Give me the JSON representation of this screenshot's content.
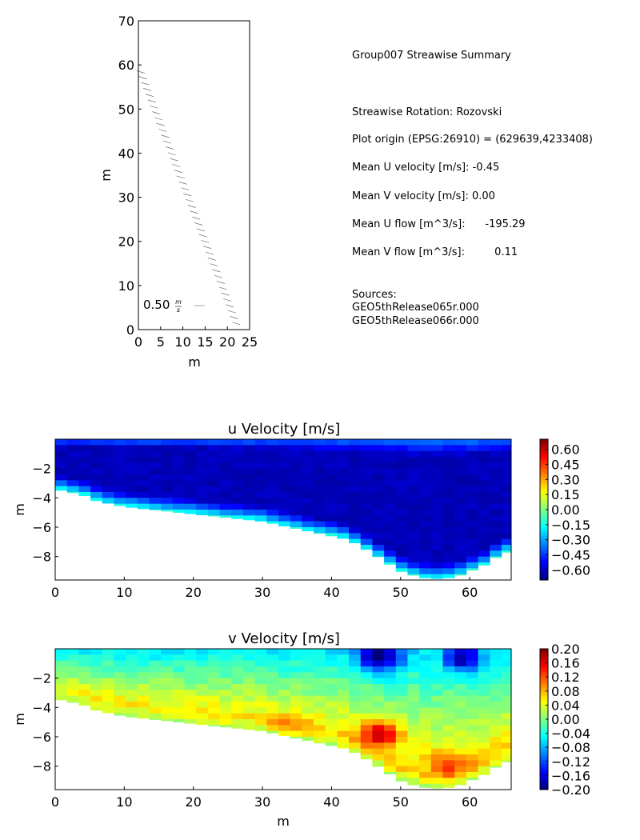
{
  "summary": {
    "title": "Group007 Streawise Summary",
    "rotation": "Streawise Rotation: Rozovski",
    "origin": "Plot origin (EPSG:26910) = (629639,4233408)",
    "mean_u": "Mean U velocity [m/s]: -0.45",
    "mean_v": "Mean V velocity [m/s]: 0.00",
    "flow_u": "Mean U flow [m^3/s]:      -195.29",
    "flow_v": "Mean V flow [m^3/s]:         0.11",
    "sources_label": "Sources:",
    "sources": [
      "GEO5thRelease065r.000",
      "GEO5thRelease066r.000"
    ]
  },
  "colors": {
    "jet": [
      "#00007f",
      "#0000ff",
      "#007fff",
      "#00ffff",
      "#7fff7f",
      "#ffff00",
      "#ff7f00",
      "#ff0000",
      "#7f0000"
    ],
    "arrow": "#555555"
  },
  "chart_data": [
    {
      "type": "quiver",
      "xlabel": "m",
      "ylabel": "m",
      "xlim": [
        0,
        25
      ],
      "ylim": [
        0,
        70
      ],
      "xticks": [
        "0",
        "5",
        "10",
        "15",
        "20",
        "25"
      ],
      "yticks": [
        "0",
        "10",
        "20",
        "30",
        "40",
        "50",
        "60",
        "70"
      ],
      "key_label": "0.50",
      "key_unit_num": "m",
      "key_unit_den": "s",
      "track": {
        "x_start": 0.5,
        "y_start": 58.5,
        "x_end": 22.0,
        "y_end": 1.5
      },
      "arrow_count": 44
    },
    {
      "type": "heatmap",
      "title": "u Velocity [m/s]",
      "ylabel": "m",
      "xlim": [
        0,
        66
      ],
      "ylim": [
        -9.6,
        0
      ],
      "xticks": [
        "0",
        "10",
        "20",
        "30",
        "40",
        "50",
        "60"
      ],
      "yticks": [
        "−2",
        "−4",
        "−6",
        "−8"
      ],
      "colorbar_ticks": [
        "0.60",
        "0.45",
        "0.30",
        "0.15",
        "0.00",
        "−0.15",
        "−0.30",
        "−0.45",
        "−0.60"
      ],
      "vmin": -0.7,
      "vmax": 0.7,
      "depth_profile": {
        "x": [
          0,
          2,
          4,
          6,
          8,
          10,
          12,
          14,
          16,
          18,
          20,
          22,
          24,
          26,
          28,
          30,
          32,
          34,
          36,
          38,
          40,
          42,
          44,
          46,
          48,
          50,
          52,
          54,
          56,
          58,
          60,
          62,
          64,
          66
        ],
        "depth": [
          3.4,
          3.6,
          3.8,
          4.2,
          4.4,
          4.6,
          4.7,
          4.8,
          4.9,
          5.0,
          5.1,
          5.2,
          5.3,
          5.4,
          5.5,
          5.6,
          5.8,
          6.0,
          6.2,
          6.4,
          6.6,
          6.8,
          7.2,
          7.8,
          8.4,
          9.0,
          9.3,
          9.5,
          9.5,
          9.4,
          9.0,
          8.6,
          8.0,
          7.6
        ]
      },
      "surface_value": -0.35,
      "core_value": -0.62,
      "bed_value": -0.15
    },
    {
      "type": "heatmap",
      "title": "v Velocity [m/s]",
      "xlabel": "m",
      "ylabel": "m",
      "xlim": [
        0,
        66
      ],
      "ylim": [
        -9.6,
        0
      ],
      "xticks": [
        "0",
        "10",
        "20",
        "30",
        "40",
        "50",
        "60"
      ],
      "yticks": [
        "−2",
        "−4",
        "−6",
        "−8"
      ],
      "colorbar_ticks": [
        "0.20",
        "0.16",
        "0.12",
        "0.08",
        "0.04",
        "0.00",
        "−0.04",
        "−0.08",
        "−0.12",
        "−0.16",
        "−0.20"
      ],
      "vmin": -0.2,
      "vmax": 0.2,
      "hot_spot": {
        "x": 47,
        "depth": 5.8,
        "value": 0.2
      },
      "cold_spot": {
        "x": 47,
        "depth": 0.5,
        "value": -0.18
      }
    }
  ]
}
